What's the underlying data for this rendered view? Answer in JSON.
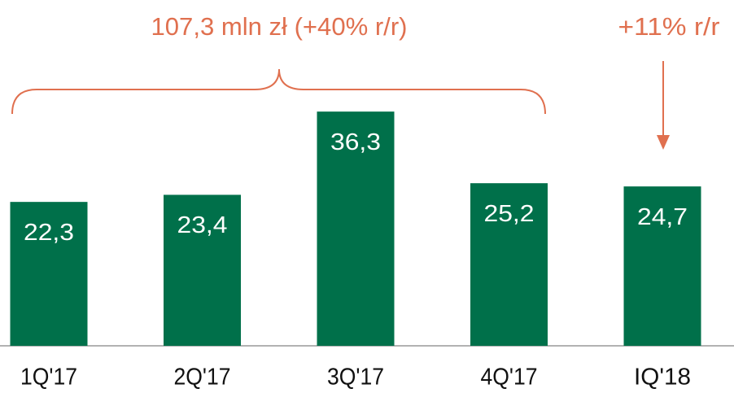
{
  "chart_data": {
    "type": "bar",
    "categories": [
      "1Q'17",
      "2Q'17",
      "3Q'17",
      "4Q'17",
      "IQ'18"
    ],
    "values": [
      22.3,
      23.4,
      36.3,
      25.2,
      24.7
    ],
    "value_labels": [
      "22,3",
      "23,4",
      "36,3",
      "25,2",
      "24,7"
    ],
    "color": "#00704a",
    "ylim": [
      0,
      50
    ],
    "annotations": [
      "107,3 mln zł (+40% r/r)",
      "+11% r/r"
    ]
  }
}
